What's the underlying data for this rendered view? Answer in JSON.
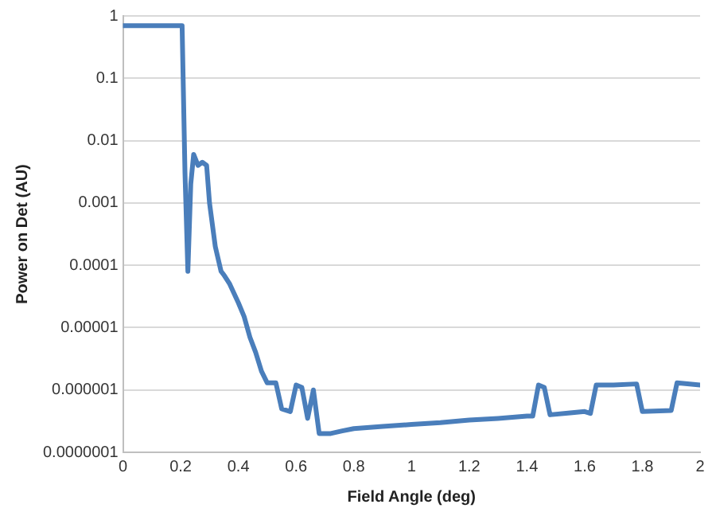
{
  "chart_data": {
    "type": "line",
    "xlabel": "Field Angle (deg)",
    "ylabel": "Power on Det (AU)",
    "log": "y",
    "grid": "y",
    "legend": false,
    "marker": "none",
    "line_style": "solid",
    "xlim": [
      0,
      2
    ],
    "xticks": [
      0,
      0.2,
      0.4,
      0.6,
      0.8,
      1,
      1.2,
      1.4,
      1.6,
      1.8,
      2
    ],
    "ylim": [
      1e-07,
      1
    ],
    "yticks": [
      {
        "value": 1e-07,
        "label": "0.0000001"
      },
      {
        "value": 1e-06,
        "label": "0.000001"
      },
      {
        "value": 1e-05,
        "label": "0.00001"
      },
      {
        "value": 0.0001,
        "label": "0.0001"
      },
      {
        "value": 0.001,
        "label": "0.001"
      },
      {
        "value": 0.01,
        "label": "0.01"
      },
      {
        "value": 0.1,
        "label": "0.1"
      },
      {
        "value": 1,
        "label": "1"
      }
    ],
    "series": [
      {
        "color": "#4a7ebb",
        "x": [
          0,
          0.1,
          0.2,
          0.205,
          0.215,
          0.225,
          0.235,
          0.245,
          0.26,
          0.275,
          0.29,
          0.3,
          0.32,
          0.34,
          0.35,
          0.37,
          0.4,
          0.42,
          0.44,
          0.46,
          0.48,
          0.5,
          0.53,
          0.55,
          0.58,
          0.6,
          0.62,
          0.64,
          0.66,
          0.68,
          0.72,
          0.76,
          0.8,
          0.9,
          1,
          1.1,
          1.2,
          1.3,
          1.4,
          1.42,
          1.44,
          1.46,
          1.48,
          1.55,
          1.6,
          1.62,
          1.64,
          1.7,
          1.78,
          1.8,
          1.9,
          1.92,
          2
        ],
        "values": [
          0.7,
          0.7,
          0.7,
          0.7,
          0.003,
          8e-05,
          0.002,
          0.006,
          0.004,
          0.0045,
          0.004,
          0.001,
          0.0002,
          8e-05,
          7e-05,
          5e-05,
          2.5e-05,
          1.5e-05,
          7e-06,
          4e-06,
          2e-06,
          1.3e-06,
          1.3e-06,
          5e-07,
          4.5e-07,
          1.2e-06,
          1.1e-06,
          3.5e-07,
          1e-06,
          2e-07,
          2e-07,
          2.2e-07,
          2.4e-07,
          2.6e-07,
          2.8e-07,
          3e-07,
          3.3e-07,
          3.5e-07,
          3.8e-07,
          3.8e-07,
          1.2e-06,
          1.1e-06,
          4e-07,
          4.3e-07,
          4.5e-07,
          4.2e-07,
          1.2e-06,
          1.2e-06,
          1.25e-06,
          4.5e-07,
          4.7e-07,
          1.3e-06,
          1.2e-06
        ]
      }
    ]
  }
}
